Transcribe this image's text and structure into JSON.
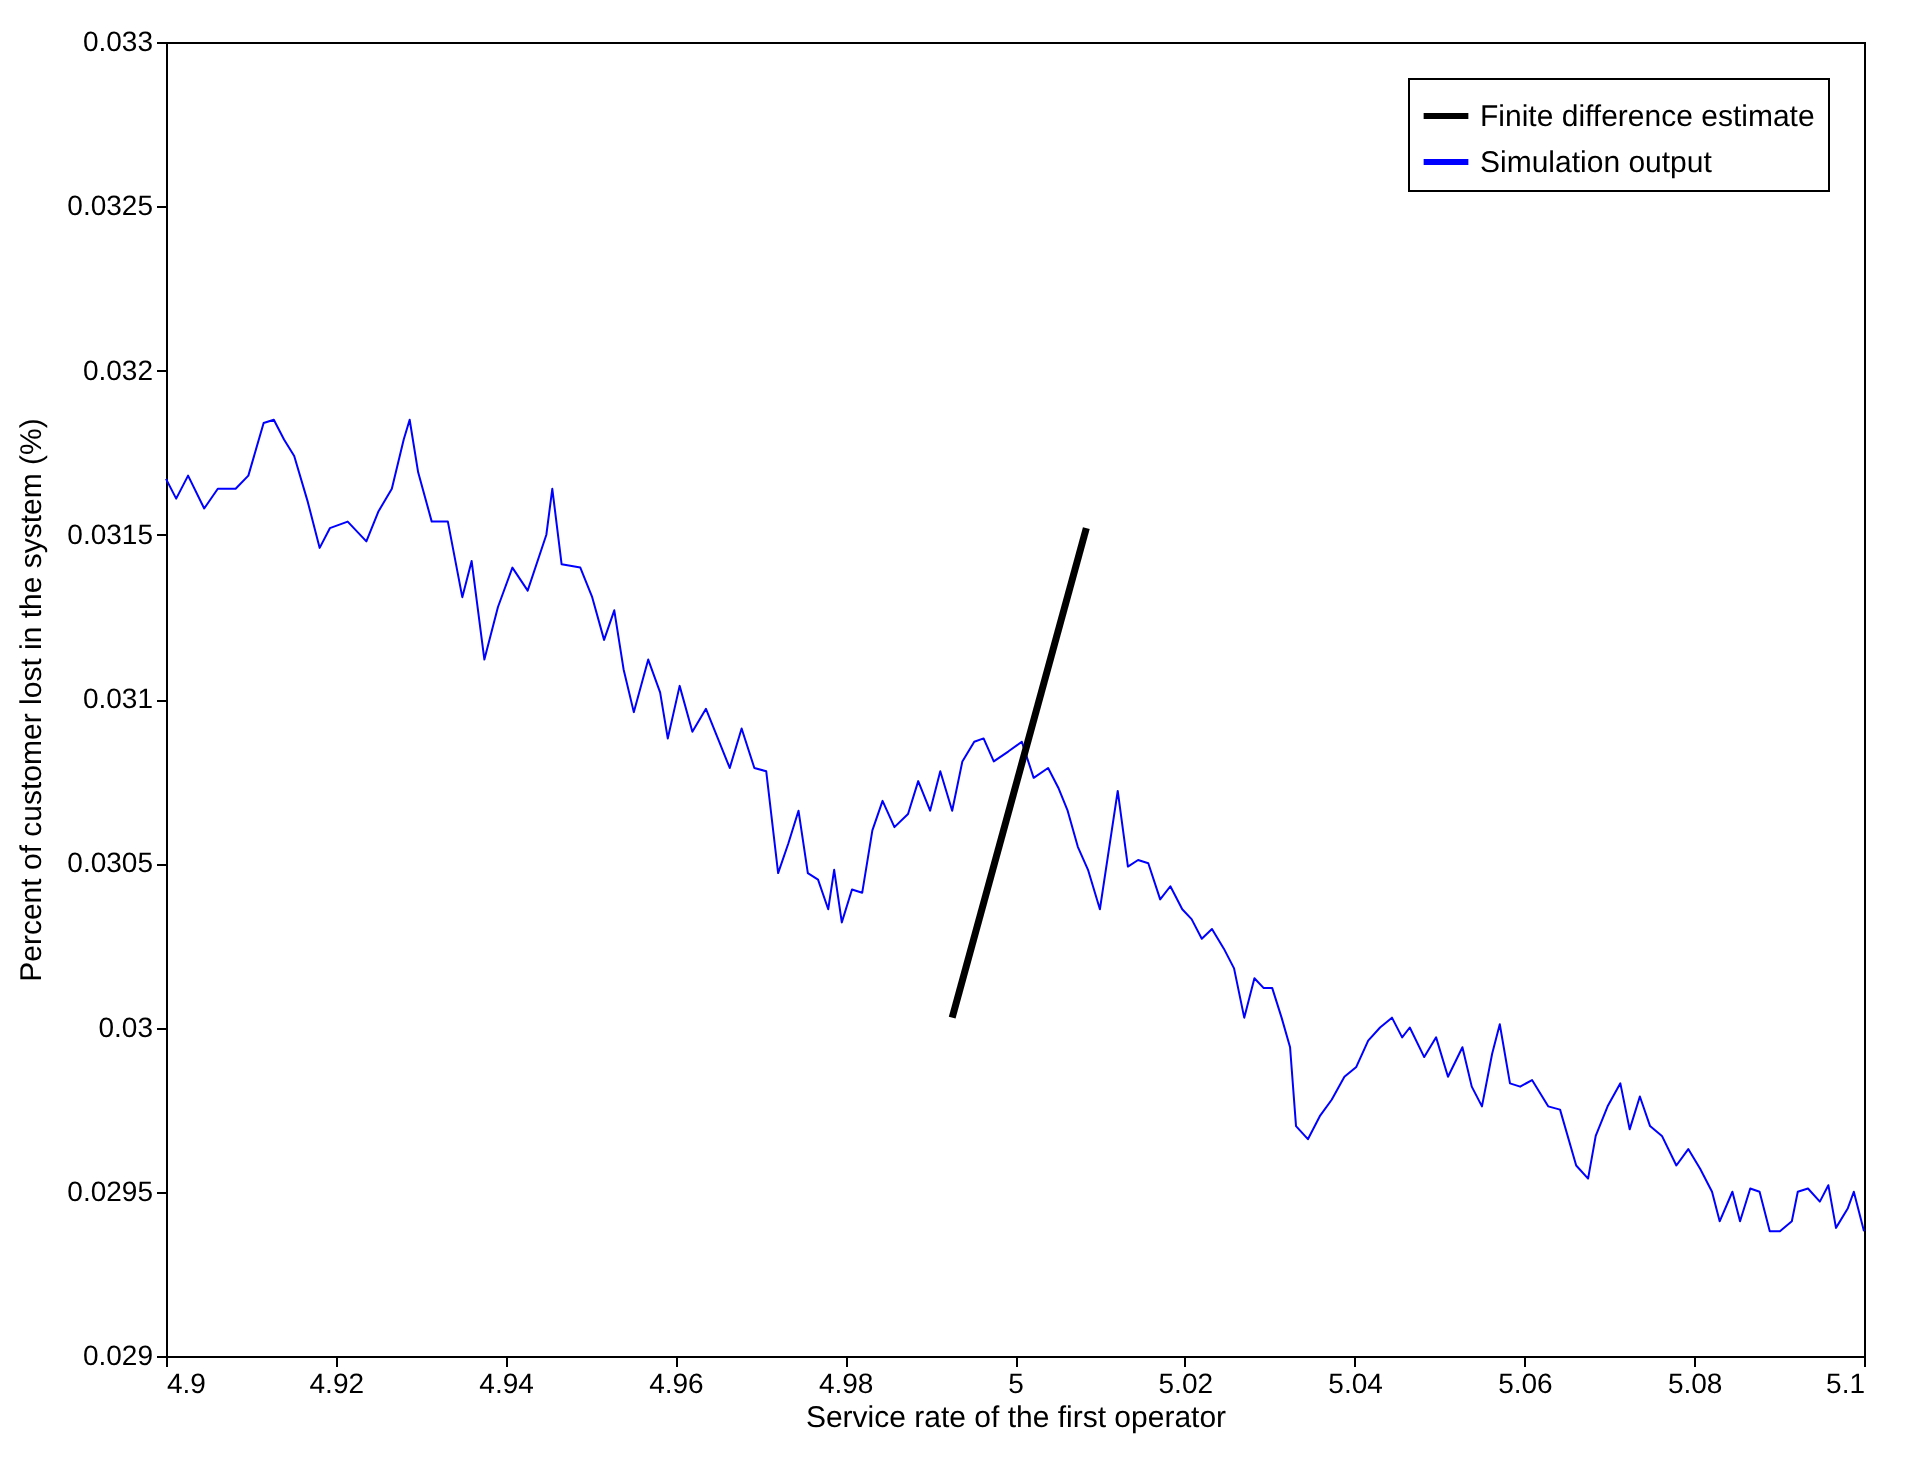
{
  "chart_data": {
    "type": "line",
    "xlabel": "Service rate of the first operator",
    "ylabel": "Percent of customer lost in the system (%)",
    "xlim": [
      4.9,
      5.1
    ],
    "xticks": [
      4.9,
      4.92,
      4.94,
      4.96,
      4.98,
      5,
      5.02,
      5.04,
      5.06,
      5.08,
      5.1
    ],
    "ylim": [
      0.029,
      0.033
    ],
    "yticks": [
      0.029,
      0.0295,
      0.03,
      0.0305,
      0.031,
      0.0315,
      0.032,
      0.0325,
      0.033
    ],
    "grid": false,
    "legend": "top right",
    "line_style": "solid",
    "marker": "none",
    "series": [
      {
        "name": "Finite difference estimate",
        "color": "#000000",
        "x": [
          4.9926,
          5.0084
        ],
        "values": [
          0.03003,
          0.03152
        ]
      },
      {
        "name": "Simulation output",
        "color": "#0000ff",
        "x": [
          4.9,
          4.9012,
          4.9026,
          4.9045,
          4.9061,
          4.9082,
          4.9097,
          4.9115,
          4.9127,
          4.9139,
          4.9151,
          4.9167,
          4.9181,
          4.9193,
          4.9214,
          4.9236,
          4.925,
          4.9266,
          4.928,
          4.9287,
          4.9297,
          4.9313,
          4.9332,
          4.9349,
          4.936,
          4.9375,
          4.9391,
          4.9408,
          4.9426,
          4.9448,
          4.9455,
          4.9466,
          4.9488,
          4.9502,
          4.9516,
          4.9528,
          4.9539,
          4.9551,
          4.9568,
          4.9582,
          4.9591,
          4.9605,
          4.962,
          4.9636,
          4.965,
          4.9664,
          4.9678,
          4.9693,
          4.9707,
          4.9721,
          4.9733,
          4.9745,
          4.9756,
          4.9768,
          4.978,
          4.9787,
          4.9796,
          4.9808,
          4.982,
          4.9832,
          4.9844,
          4.9858,
          4.9874,
          4.9886,
          4.99,
          4.9912,
          4.9926,
          4.9938,
          4.9952,
          4.9963,
          4.9975,
          4.9992,
          5.0008,
          5.0022,
          5.0039,
          5.0051,
          5.0062,
          5.0074,
          5.0086,
          5.01,
          5.0114,
          5.0121,
          5.0133,
          5.0145,
          5.0157,
          5.0171,
          5.0183,
          5.0197,
          5.0208,
          5.022,
          5.0232,
          5.0246,
          5.0258,
          5.027,
          5.0282,
          5.0293,
          5.0303,
          5.0314,
          5.0324,
          5.0331,
          5.0345,
          5.0359,
          5.0373,
          5.0388,
          5.0402,
          5.0416,
          5.043,
          5.0444,
          5.0456,
          5.0465,
          5.0482,
          5.0496,
          5.051,
          5.0527,
          5.0538,
          5.055,
          5.0562,
          5.0571,
          5.0583,
          5.0595,
          5.0609,
          5.0628,
          5.0642,
          5.0661,
          5.0675,
          5.0684,
          5.0698,
          5.0713,
          5.0724,
          5.0736,
          5.0748,
          5.0762,
          5.0779,
          5.0793,
          5.0807,
          5.0821,
          5.083,
          5.0845,
          5.0854,
          5.0866,
          5.0877,
          5.0889,
          5.0901,
          5.0915,
          5.0922,
          5.0934,
          5.0948,
          5.0958,
          5.0967,
          5.0981,
          5.0988,
          5.1
        ],
        "values": [
          0.03167,
          0.03161,
          0.03168,
          0.03158,
          0.03164,
          0.03164,
          0.03168,
          0.03184,
          0.03185,
          0.03179,
          0.03174,
          0.0316,
          0.03146,
          0.03152,
          0.03154,
          0.03148,
          0.03157,
          0.03164,
          0.03179,
          0.03185,
          0.03169,
          0.03154,
          0.03154,
          0.03131,
          0.03142,
          0.03112,
          0.03128,
          0.0314,
          0.03133,
          0.0315,
          0.03164,
          0.03141,
          0.0314,
          0.03131,
          0.03118,
          0.03127,
          0.03109,
          0.03096,
          0.03112,
          0.03102,
          0.03088,
          0.03104,
          0.0309,
          0.03097,
          0.03088,
          0.03079,
          0.03091,
          0.03079,
          0.03078,
          0.03047,
          0.03056,
          0.03066,
          0.03047,
          0.03045,
          0.03036,
          0.03048,
          0.03032,
          0.03042,
          0.03041,
          0.0306,
          0.03069,
          0.03061,
          0.03065,
          0.03075,
          0.03066,
          0.03078,
          0.03066,
          0.03081,
          0.03087,
          0.03088,
          0.03081,
          0.03084,
          0.03087,
          0.03076,
          0.03079,
          0.03073,
          0.03066,
          0.03055,
          0.03048,
          0.03036,
          0.0306,
          0.03072,
          0.03049,
          0.03051,
          0.0305,
          0.03039,
          0.03043,
          0.03036,
          0.03033,
          0.03027,
          0.0303,
          0.03024,
          0.03018,
          0.03003,
          0.03015,
          0.03012,
          0.03012,
          0.03003,
          0.02994,
          0.0297,
          0.02966,
          0.02973,
          0.02978,
          0.02985,
          0.02988,
          0.02996,
          0.03,
          0.03003,
          0.02997,
          0.03,
          0.02991,
          0.02997,
          0.02985,
          0.02994,
          0.02982,
          0.02976,
          0.02992,
          0.03001,
          0.02983,
          0.02982,
          0.02984,
          0.02976,
          0.02975,
          0.02958,
          0.02954,
          0.02967,
          0.02976,
          0.02983,
          0.02969,
          0.02979,
          0.0297,
          0.02967,
          0.02958,
          0.02963,
          0.02957,
          0.0295,
          0.02941,
          0.0295,
          0.02941,
          0.02951,
          0.0295,
          0.02938,
          0.02938,
          0.02941,
          0.0295,
          0.02951,
          0.02947,
          0.02952,
          0.02939,
          0.02945,
          0.0295,
          0.02938
        ]
      }
    ]
  }
}
